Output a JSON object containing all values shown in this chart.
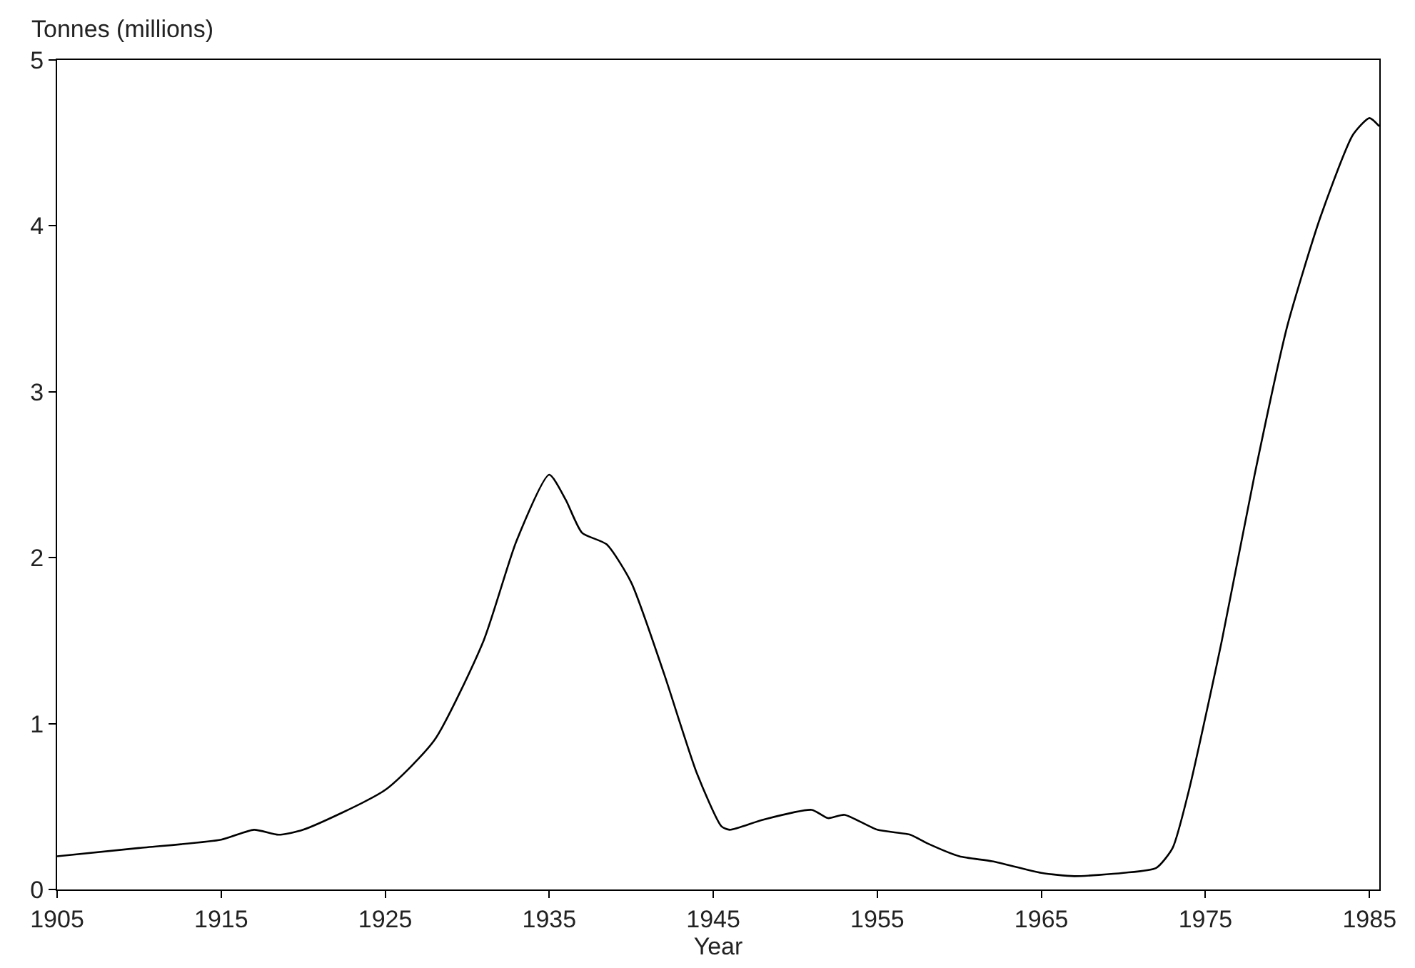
{
  "chart_data": {
    "type": "line",
    "xlabel": "Year",
    "ylabel": "Tonnes (millions)",
    "x": [
      1905,
      1910,
      1915,
      1917,
      1918.5,
      1920,
      1925,
      1928,
      1931,
      1933,
      1935,
      1936,
      1937,
      1938.5,
      1940,
      1942,
      1944,
      1945.5,
      1946,
      1948,
      1951,
      1952,
      1953,
      1955,
      1957,
      1958,
      1960,
      1962,
      1965,
      1967,
      1970,
      1972,
      1973,
      1974,
      1976,
      1978,
      1980,
      1982,
      1984,
      1985,
      1985.6
    ],
    "series": [
      {
        "color": "#000000",
        "values": [
          0.2,
          0.25,
          0.3,
          0.36,
          0.33,
          0.36,
          0.6,
          0.9,
          1.5,
          2.1,
          2.5,
          2.35,
          2.15,
          2.08,
          1.85,
          1.3,
          0.7,
          0.38,
          0.36,
          0.42,
          0.48,
          0.43,
          0.45,
          0.36,
          0.33,
          0.28,
          0.2,
          0.17,
          0.1,
          0.08,
          0.1,
          0.13,
          0.25,
          0.6,
          1.5,
          2.5,
          3.4,
          4.05,
          4.55,
          4.65,
          4.6
        ]
      }
    ],
    "xlim": [
      1905,
      1985.6
    ],
    "xticks": [
      1905,
      1915,
      1925,
      1935,
      1945,
      1955,
      1965,
      1975,
      1985
    ],
    "ylim": [
      0,
      5
    ],
    "yticks": [
      0,
      1,
      2,
      3,
      4,
      5
    ],
    "marker": "none",
    "line_style": "solid"
  }
}
